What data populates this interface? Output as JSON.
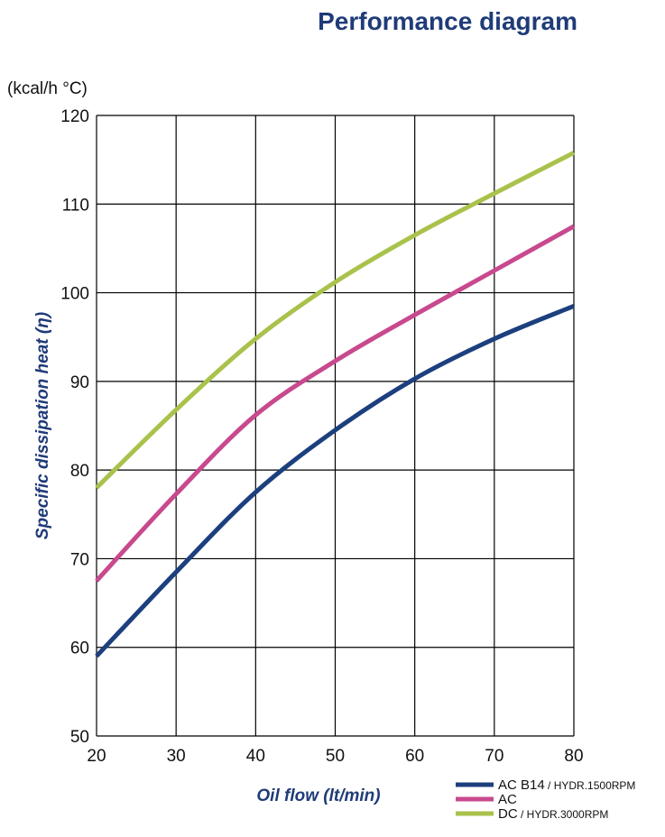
{
  "chart_data": {
    "type": "line",
    "title": "Performance diagram",
    "unit_label": "(kcal/h °C)",
    "ylabel": "Specific dissipation heat (η)",
    "xlabel": "Oil  flow  (lt/min)",
    "xlim": [
      20,
      80
    ],
    "ylim": [
      50,
      120
    ],
    "xticks": [
      20,
      30,
      40,
      50,
      60,
      70,
      80
    ],
    "yticks": [
      50,
      60,
      70,
      80,
      90,
      100,
      110,
      120
    ],
    "grid": true,
    "legend_position": "bottom-right",
    "x": [
      20,
      30,
      40,
      50,
      60,
      70,
      80
    ],
    "series": [
      {
        "key": "acb14",
        "legend_main": "AC B14",
        "legend_sub": " / HYDR.1500RPM",
        "color": "#1c3f7e",
        "values": [
          59,
          68.5,
          77.5,
          84.5,
          90.3,
          94.8,
          98.5
        ]
      },
      {
        "key": "ac",
        "legend_main": "AC",
        "legend_sub": "",
        "color": "#c8498e",
        "values": [
          67.5,
          77.3,
          86.2,
          92.3,
          97.5,
          102.5,
          107.5
        ]
      },
      {
        "key": "dc",
        "legend_main": "DC",
        "legend_sub": " / HYDR.3000RPM",
        "color": "#a9c24b",
        "values": [
          78,
          86.8,
          94.8,
          101.2,
          106.5,
          111.2,
          115.8
        ]
      }
    ]
  }
}
